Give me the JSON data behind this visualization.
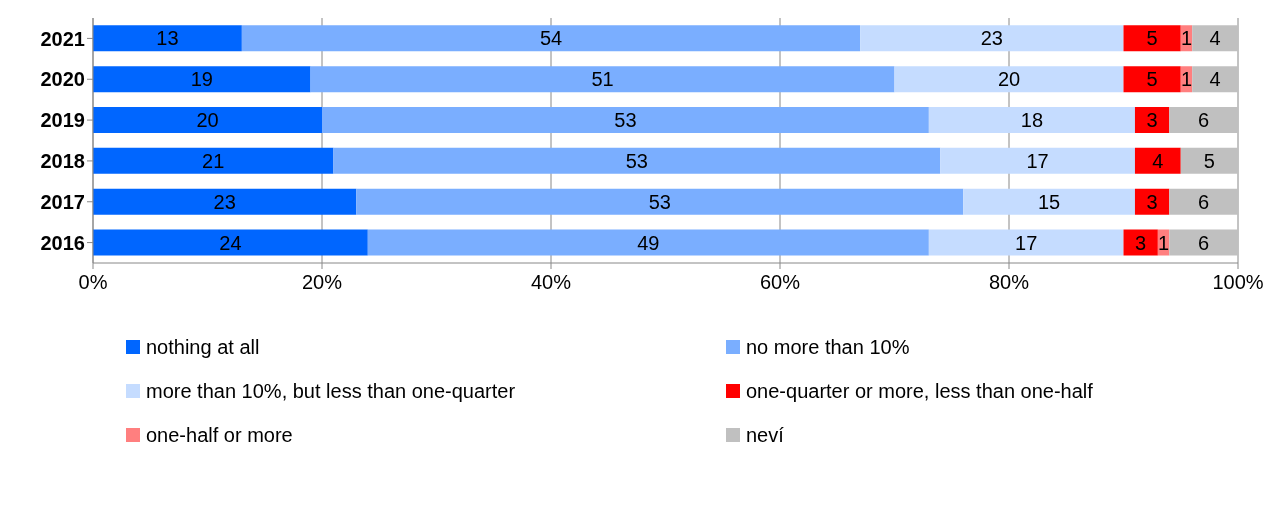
{
  "chart_data": {
    "type": "bar",
    "orientation": "horizontal",
    "stacked": true,
    "data_labels": true,
    "grid": "x",
    "legend": "bottom",
    "categories": [
      "2021",
      "2020",
      "2019",
      "2018",
      "2017",
      "2016"
    ],
    "xlim": [
      0,
      100
    ],
    "xticks": [
      {
        "value": 0,
        "label": "0%"
      },
      {
        "value": 20,
        "label": "20%"
      },
      {
        "value": 40,
        "label": "40%"
      },
      {
        "value": 60,
        "label": "60%"
      },
      {
        "value": 80,
        "label": "80%"
      },
      {
        "value": 100,
        "label": "100%"
      }
    ],
    "series": [
      {
        "name": "nothing at all",
        "color": "#0066ff",
        "values": [
          13,
          19,
          20,
          21,
          23,
          24
        ]
      },
      {
        "name": "no more than 10%",
        "color": "#7aaeff",
        "values": [
          54,
          51,
          53,
          53,
          53,
          49
        ]
      },
      {
        "name": "more than 10%, but less than one-quarter",
        "color": "#c5dcff",
        "values": [
          23,
          20,
          18,
          17,
          15,
          17
        ]
      },
      {
        "name": "one-quarter or more, less than one-half",
        "color": "#ff0000",
        "values": [
          5,
          5,
          3,
          4,
          3,
          3
        ]
      },
      {
        "name": "one-half or more",
        "color": "#ff7f7f",
        "values": [
          1,
          1,
          null,
          null,
          null,
          1
        ]
      },
      {
        "name": "neví",
        "color": "#c0c0c0",
        "values": [
          4,
          4,
          6,
          5,
          6,
          6
        ]
      }
    ]
  }
}
